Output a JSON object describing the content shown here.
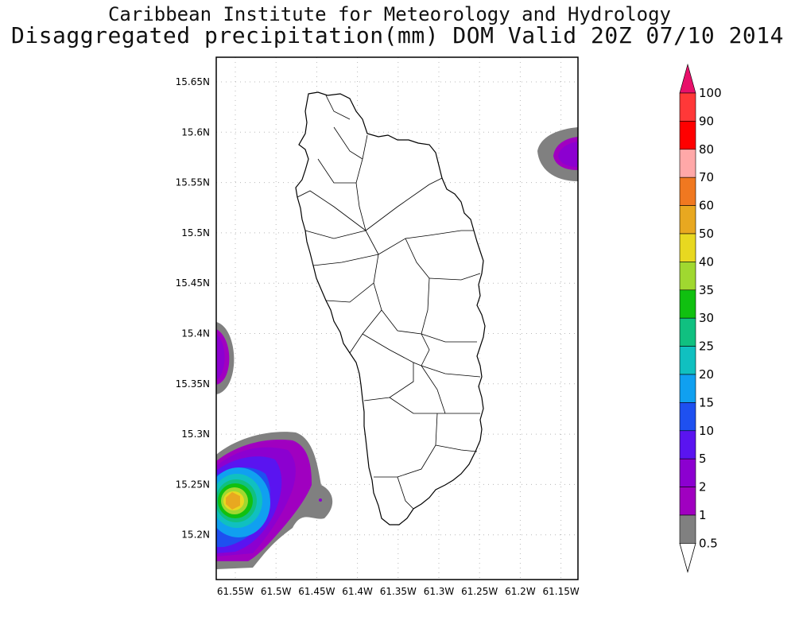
{
  "header": {
    "institute": "Caribbean Institute for Meteorology and Hydrology",
    "product": "Disaggregated precipitation(mm) DOM Valid 20Z 07/10 2014"
  },
  "map": {
    "lat_labels": [
      "15.65N",
      "15.6N",
      "15.55N",
      "15.5N",
      "15.45N",
      "15.4N",
      "15.35N",
      "15.3N",
      "15.25N",
      "15.2N"
    ],
    "lon_labels": [
      "61.55W",
      "61.5W",
      "61.45W",
      "61.4W",
      "61.35W",
      "61.3W",
      "61.25W",
      "61.2W",
      "61.15W"
    ],
    "grid": true,
    "gridline_style": "dotted"
  },
  "colorbar": {
    "labels": [
      "100",
      "90",
      "80",
      "70",
      "60",
      "50",
      "40",
      "35",
      "30",
      "25",
      "20",
      "15",
      "10",
      "5",
      "2",
      "1",
      "0.5"
    ],
    "colors": [
      "#e8106a",
      "#ff3838",
      "#ff0000",
      "#ffa8a8",
      "#f07820",
      "#e8a820",
      "#e8d820",
      "#a0d830",
      "#10c010",
      "#10c080",
      "#10c0c0",
      "#10a0f0",
      "#1e50f0",
      "#5a14f0",
      "#8c00d0",
      "#a000c0",
      "#808080",
      "#ffffff"
    ],
    "top_arrow_color": "#e8106a"
  }
}
